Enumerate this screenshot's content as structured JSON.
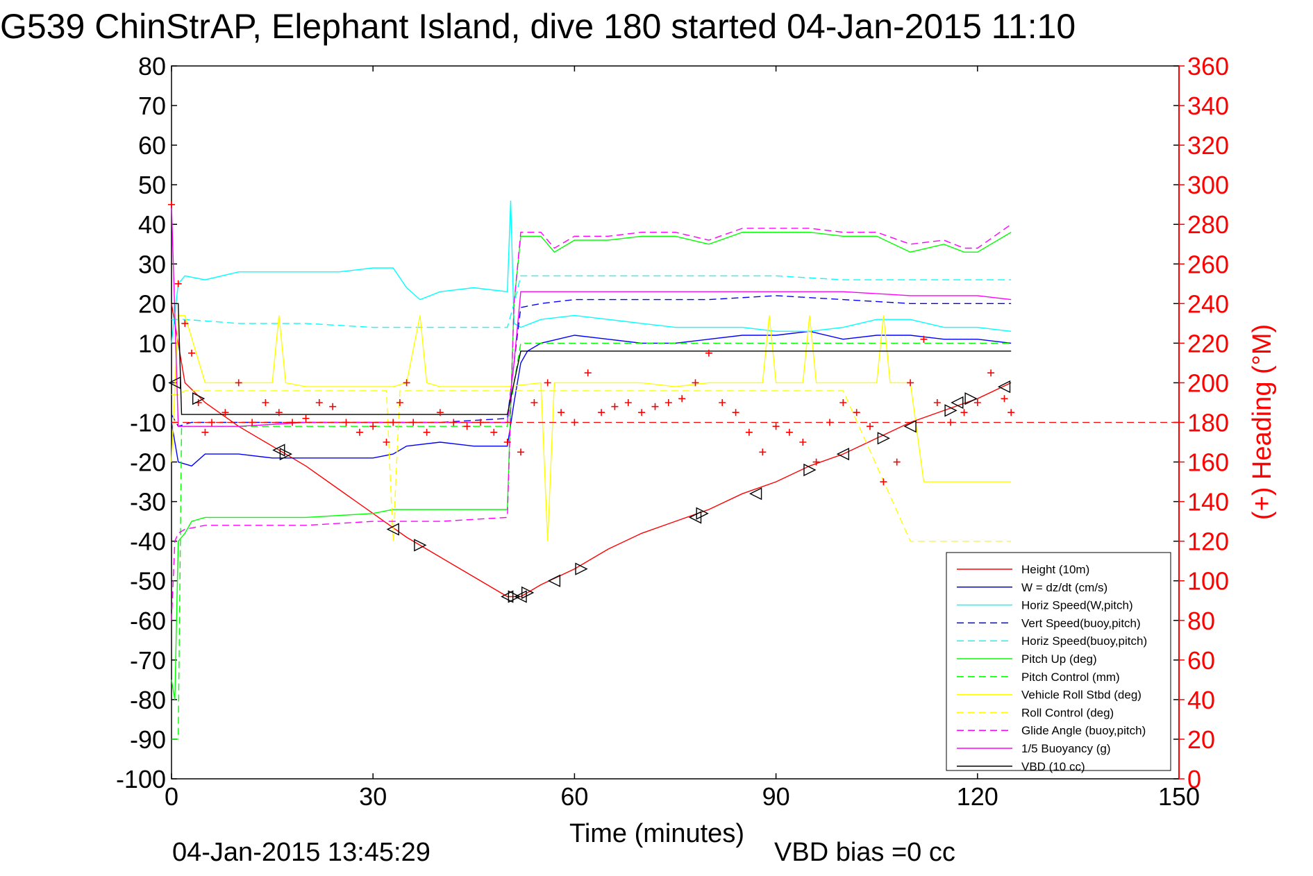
{
  "chart_data": {
    "type": "line",
    "title": "G539 ChinStrAP, Elephant Island, dive 180 started 04-Jan-2015 11:10",
    "xlabel": "Time (minutes)",
    "ylabel_right": "(+) Heading (°M)",
    "xlim": [
      0,
      150
    ],
    "ylim": [
      -100,
      80
    ],
    "ylim_right": [
      0,
      360
    ],
    "x_ticks": [
      "0",
      "30",
      "60",
      "90",
      "120",
      "150"
    ],
    "y_ticks": [
      "-100",
      "-90",
      "-80",
      "-70",
      "-60",
      "-50",
      "-40",
      "-30",
      "-20",
      "-10",
      "0",
      "10",
      "20",
      "30",
      "40",
      "50",
      "60",
      "70",
      "80"
    ],
    "y_right_ticks": [
      "0",
      "20",
      "40",
      "60",
      "80",
      "100",
      "120",
      "140",
      "160",
      "180",
      "200",
      "220",
      "240",
      "260",
      "280",
      "300",
      "320",
      "340",
      "360"
    ],
    "footer_left": "04-Jan-2015 13:45:29",
    "footer_right": "VBD bias =0 cc",
    "legend_position": "bottom-right",
    "colors": {
      "red": "#ff0000",
      "blue": "#0000ff",
      "cyan": "#00ffff",
      "green": "#00ff00",
      "yellow": "#ffff00",
      "magenta": "#ff00ff",
      "black": "#000000"
    },
    "series": [
      {
        "name": "Height (10m)",
        "color": "#ff0000",
        "dash": false,
        "x": [
          0,
          2,
          5,
          10,
          15,
          20,
          25,
          30,
          35,
          40,
          45,
          50,
          51,
          52,
          53,
          55,
          60,
          65,
          70,
          75,
          80,
          85,
          90,
          95,
          100,
          105,
          110,
          115,
          120,
          125
        ],
        "values": [
          20,
          0,
          -5,
          -11,
          -16,
          -21,
          -27,
          -33,
          -39,
          -44,
          -49,
          -54,
          -54,
          -54,
          -53,
          -51,
          -47,
          -42,
          -38,
          -35,
          -32,
          -28,
          -25,
          -21,
          -18,
          -14,
          -10,
          -7,
          -4,
          0
        ]
      },
      {
        "name": "W = dz/dt (cm/s)",
        "color": "#0000ff",
        "dash": false,
        "x": [
          0,
          1,
          3,
          5,
          10,
          15,
          20,
          25,
          30,
          33,
          35,
          40,
          45,
          50,
          51,
          52,
          53,
          55,
          60,
          65,
          70,
          75,
          80,
          85,
          90,
          95,
          100,
          105,
          110,
          115,
          120,
          125
        ],
        "values": [
          -10,
          -20,
          -21,
          -18,
          -18,
          -19,
          -19,
          -19,
          -19,
          -18,
          -16,
          -15,
          -16,
          -16,
          -5,
          5,
          8,
          10,
          12,
          11,
          10,
          10,
          11,
          12,
          12,
          13,
          11,
          12,
          12,
          11,
          11,
          10
        ]
      },
      {
        "name": "Horiz Speed(W,pitch)",
        "color": "#00ffff",
        "dash": false,
        "x": [
          0,
          1,
          2,
          5,
          10,
          15,
          20,
          25,
          30,
          33,
          35,
          37,
          40,
          45,
          50,
          50.5,
          51,
          52,
          55,
          60,
          65,
          70,
          75,
          80,
          85,
          90,
          95,
          100,
          105,
          110,
          115,
          120,
          125
        ],
        "values": [
          10,
          25,
          27,
          26,
          28,
          28,
          28,
          28,
          29,
          29,
          24,
          21,
          23,
          24,
          23,
          46,
          15,
          14,
          16,
          17,
          16,
          15,
          14,
          14,
          14,
          13,
          13,
          14,
          16,
          16,
          14,
          14,
          13
        ]
      },
      {
        "name": "Vert Speed(buoy,pitch)",
        "color": "#0000ff",
        "dash": true,
        "x": [
          0,
          1,
          3,
          10,
          20,
          30,
          40,
          50,
          51,
          52,
          55,
          60,
          70,
          80,
          90,
          100,
          110,
          120,
          125
        ],
        "values": [
          -8,
          -11,
          -10,
          -10,
          -10,
          -10,
          -10,
          -9,
          5,
          19,
          20,
          21,
          21,
          21,
          22,
          21,
          20,
          20,
          20
        ]
      },
      {
        "name": "Horiz Speed(buoy,pitch)",
        "color": "#00ffff",
        "dash": true,
        "x": [
          0,
          2,
          10,
          20,
          30,
          40,
          50,
          51,
          52,
          60,
          70,
          80,
          90,
          100,
          110,
          120,
          125
        ],
        "values": [
          16,
          16,
          15,
          15,
          14,
          14,
          14,
          20,
          27,
          27,
          27,
          27,
          27,
          26,
          26,
          26,
          26
        ]
      },
      {
        "name": "Pitch Up (deg)",
        "color": "#00ff00",
        "dash": false,
        "x": [
          0,
          0.5,
          1,
          2,
          3,
          5,
          10,
          20,
          30,
          33,
          40,
          50,
          51,
          52,
          55,
          57,
          60,
          65,
          70,
          75,
          80,
          85,
          90,
          95,
          100,
          105,
          110,
          115,
          118,
          120,
          125
        ],
        "values": [
          -75,
          -80,
          -40,
          -38,
          -35,
          -34,
          -34,
          -34,
          -33,
          -32,
          -32,
          -32,
          20,
          37,
          37,
          33,
          36,
          36,
          37,
          37,
          35,
          38,
          38,
          38,
          37,
          37,
          33,
          35,
          33,
          33,
          38
        ]
      },
      {
        "name": "Pitch Control (mm)",
        "color": "#00ff00",
        "dash": true,
        "x": [
          0,
          1,
          1.5,
          3,
          10,
          20,
          30,
          40,
          50,
          51,
          52,
          60,
          70,
          80,
          90,
          100,
          110,
          120,
          125
        ],
        "values": [
          -90,
          -90,
          -11,
          -11,
          -11,
          -11,
          -11,
          -11,
          -11,
          0,
          10,
          10,
          10,
          10,
          10,
          10,
          10,
          10,
          10
        ]
      },
      {
        "name": "Vehicle Roll Stbd (deg)",
        "color": "#ffff00",
        "dash": false,
        "x": [
          0,
          1,
          2,
          5,
          10,
          15,
          16,
          17,
          20,
          30,
          33,
          35,
          37,
          38,
          40,
          45,
          50,
          55,
          56,
          57,
          60,
          70,
          75,
          80,
          85,
          88,
          89,
          90,
          94,
          95,
          96,
          100,
          105,
          106,
          107,
          110,
          112,
          115,
          120,
          125
        ],
        "values": [
          -20,
          17,
          17,
          0,
          0,
          0,
          17,
          0,
          -1,
          -1,
          -1,
          0,
          17,
          0,
          -1,
          -1,
          -1,
          0,
          -40,
          0,
          0,
          0,
          -1,
          0,
          0,
          0,
          17,
          0,
          0,
          17,
          0,
          0,
          0,
          17,
          0,
          0,
          -25,
          -25,
          -25,
          -25
        ]
      },
      {
        "name": "Roll Control (deg)",
        "color": "#ffff00",
        "dash": true,
        "x": [
          0,
          1,
          2,
          10,
          20,
          30,
          32,
          33,
          34,
          40,
          50,
          55,
          60,
          70,
          80,
          90,
          100,
          110,
          115,
          120,
          125
        ],
        "values": [
          -3,
          -3,
          -2,
          -2,
          -2,
          -2,
          -2,
          -40,
          -2,
          -2,
          -2,
          -2,
          -2,
          -2,
          -2,
          -2,
          -2,
          -40,
          -40,
          -40,
          -40
        ]
      },
      {
        "name": "Glide Angle (buoy,pitch)",
        "color": "#ff00ff",
        "dash": true,
        "x": [
          0,
          0.5,
          1,
          2,
          5,
          10,
          20,
          30,
          40,
          50,
          51,
          52,
          55,
          57,
          60,
          65,
          70,
          75,
          80,
          85,
          90,
          95,
          100,
          105,
          110,
          115,
          118,
          120,
          125
        ],
        "values": [
          -60,
          -40,
          -38,
          -37,
          -36,
          -36,
          -36,
          -35,
          -35,
          -34,
          20,
          38,
          38,
          34,
          37,
          37,
          38,
          38,
          36,
          39,
          39,
          39,
          38,
          38,
          35,
          36,
          34,
          34,
          40
        ]
      },
      {
        "name": "1/5 Buoyancy (g)",
        "color": "#ff00ff",
        "dash": false,
        "x": [
          0,
          1,
          2,
          10,
          20,
          30,
          40,
          50,
          51,
          52,
          60,
          70,
          80,
          90,
          100,
          110,
          120,
          125
        ],
        "values": [
          45,
          -11,
          -11,
          -11,
          -10,
          -10,
          -10,
          -10,
          5,
          23,
          23,
          23,
          23,
          23,
          23,
          22,
          22,
          21
        ]
      },
      {
        "name": "VBD (10 cc)",
        "color": "#000000",
        "dash": false,
        "x": [
          0,
          1,
          1.5,
          10,
          20,
          30,
          40,
          50,
          51,
          52,
          60,
          70,
          80,
          90,
          100,
          110,
          120,
          125
        ],
        "values": [
          20,
          20,
          -8,
          -8,
          -8,
          -8,
          -8,
          -8,
          0,
          8,
          8,
          8,
          8,
          8,
          8,
          8,
          8,
          8
        ]
      }
    ],
    "heading": {
      "name": "Heading (°M)",
      "color": "#ff0000",
      "marker": "+",
      "axis": "right",
      "reference_value": 180,
      "x": [
        0,
        1,
        2,
        3,
        4,
        5,
        6,
        8,
        10,
        12,
        14,
        16,
        18,
        20,
        22,
        24,
        26,
        28,
        30,
        32,
        33,
        34,
        35,
        36,
        38,
        40,
        42,
        44,
        46,
        48,
        50,
        52,
        54,
        56,
        58,
        60,
        62,
        64,
        66,
        68,
        70,
        72,
        74,
        76,
        78,
        80,
        82,
        84,
        86,
        88,
        90,
        92,
        94,
        96,
        98,
        100,
        102,
        104,
        106,
        108,
        110,
        112,
        114,
        116,
        118,
        120,
        122,
        124,
        125
      ],
      "values": [
        290,
        250,
        230,
        215,
        190,
        175,
        180,
        185,
        200,
        180,
        190,
        185,
        180,
        182,
        190,
        188,
        180,
        175,
        178,
        170,
        180,
        190,
        200,
        180,
        175,
        185,
        180,
        178,
        180,
        175,
        170,
        165,
        190,
        200,
        185,
        180,
        205,
        185,
        188,
        190,
        185,
        188,
        190,
        192,
        200,
        215,
        190,
        185,
        175,
        165,
        178,
        175,
        170,
        160,
        180,
        190,
        185,
        178,
        150,
        160,
        200,
        222,
        190,
        180,
        185,
        190,
        205,
        192,
        185
      ]
    },
    "triangle_markers": {
      "description": "",
      "x": [
        0.5,
        4,
        16,
        17,
        33,
        37,
        50,
        51,
        52,
        53,
        57,
        61,
        78,
        79,
        87,
        95,
        100,
        106,
        110,
        116,
        117,
        119,
        124
      ],
      "values": [
        0,
        -4,
        -17,
        -18,
        -37,
        -41,
        -54,
        -54,
        -54,
        -53,
        -50,
        -47,
        -34,
        -33,
        -28,
        -22,
        -18,
        -14,
        -11,
        -7,
        -5,
        -4,
        -1
      ]
    }
  }
}
